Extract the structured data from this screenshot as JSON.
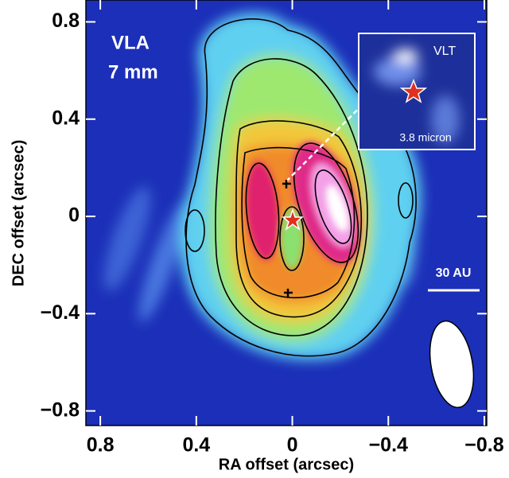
{
  "chart_data": {
    "type": "image",
    "xlabel": "RA offset (arcsec)",
    "ylabel": "DEC offset (arcsec)",
    "xlim": [
      0.86,
      -0.81
    ],
    "ylim": [
      -0.86,
      0.89
    ],
    "xticks": [
      0.8,
      0.4,
      0,
      {
        "value": -0.4,
        "label": "−0.4"
      },
      {
        "value": -0.8,
        "label": "−0.8"
      }
    ],
    "yticks": [
      0.8,
      0.4,
      0,
      {
        "value": -0.4,
        "label": "−0.4"
      },
      {
        "value": -0.8,
        "label": "−0.8"
      }
    ],
    "annotations": {
      "instrument": "VLA",
      "wavelength": "7 mm",
      "inset_instrument": "VLT",
      "inset_wavelength": "3.8 micron",
      "scale_bar": "30 AU"
    }
  }
}
